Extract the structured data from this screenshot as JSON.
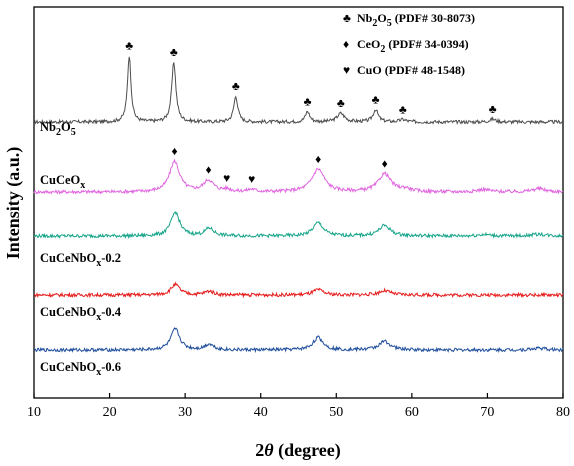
{
  "chart_data": {
    "type": "line",
    "xlabel_prefix": "2",
    "xlabel_theta": "θ",
    "xlabel_suffix": " (degree)",
    "ylabel": "Intensity (a.u.)",
    "xlim": [
      10,
      80
    ],
    "x_ticks": [
      10,
      20,
      30,
      40,
      50,
      60,
      70,
      80
    ],
    "y_ticks_shown": false,
    "legend_placement": "top-right",
    "legend": [
      {
        "symbol": "♣",
        "phase_main": "Nb",
        "sub1": "2",
        "mid": "O",
        "sub2": "5",
        "pdf": " (PDF# 30-8073)"
      },
      {
        "symbol": "♦",
        "phase_main": "CeO",
        "sub1": "2",
        "mid": "",
        "sub2": "",
        "pdf": " (PDF# 34-0394)"
      },
      {
        "symbol": "♥",
        "phase_main": "CuO",
        "sub1": "",
        "mid": "",
        "sub2": "",
        "pdf": " (PDF# 48-1548)"
      }
    ],
    "series": [
      {
        "name_main": "Nb",
        "name_sub1": "2",
        "name_mid": "O",
        "name_sub2": "5",
        "name_tail": "",
        "color": "#4d4d4d",
        "baseline": 1.0,
        "peaks": [
          {
            "pos": 22.6,
            "height": 7.0,
            "width": 0.28
          },
          {
            "pos": 28.5,
            "height": 6.3,
            "width": 0.33
          },
          {
            "pos": 36.7,
            "height": 2.7,
            "width": 0.33
          },
          {
            "pos": 46.2,
            "height": 1.1,
            "width": 0.35
          },
          {
            "pos": 50.6,
            "height": 0.9,
            "width": 0.6
          },
          {
            "pos": 55.2,
            "height": 1.3,
            "width": 0.4
          },
          {
            "pos": 58.8,
            "height": 0.25,
            "width": 0.5
          },
          {
            "pos": 70.7,
            "height": 0.3,
            "width": 0.5
          }
        ],
        "markers": [
          {
            "pos": 22.6,
            "symbol": "♣"
          },
          {
            "pos": 28.5,
            "symbol": "♣"
          },
          {
            "pos": 36.7,
            "symbol": "♣"
          },
          {
            "pos": 46.2,
            "symbol": "♣"
          },
          {
            "pos": 50.6,
            "symbol": "♣"
          },
          {
            "pos": 55.2,
            "symbol": "♣"
          },
          {
            "pos": 58.8,
            "symbol": "♣"
          },
          {
            "pos": 70.7,
            "symbol": "♣"
          }
        ]
      },
      {
        "name_main": "CuCeO",
        "name_sub1": "x",
        "name_mid": "",
        "name_sub2": "",
        "name_tail": "",
        "color": "#e066e0",
        "baseline": 1.0,
        "peaks": [
          {
            "pos": 28.6,
            "height": 3.2,
            "width": 0.8
          },
          {
            "pos": 33.1,
            "height": 1.2,
            "width": 0.8
          },
          {
            "pos": 35.5,
            "height": 0.25,
            "width": 0.6
          },
          {
            "pos": 38.8,
            "height": 0.25,
            "width": 0.6
          },
          {
            "pos": 47.6,
            "height": 2.4,
            "width": 1.0
          },
          {
            "pos": 56.4,
            "height": 1.9,
            "width": 1.0
          },
          {
            "pos": 59.2,
            "height": 0.3,
            "width": 0.8
          },
          {
            "pos": 69.5,
            "height": 0.25,
            "width": 1.0
          },
          {
            "pos": 76.8,
            "height": 0.35,
            "width": 1.0
          }
        ],
        "markers": [
          {
            "pos": 28.6,
            "symbol": "♦"
          },
          {
            "pos": 33.1,
            "symbol": "♦"
          },
          {
            "pos": 35.5,
            "symbol": "♥"
          },
          {
            "pos": 38.8,
            "symbol": "♥"
          },
          {
            "pos": 47.6,
            "symbol": "♦"
          },
          {
            "pos": 56.4,
            "symbol": "♦"
          }
        ]
      },
      {
        "name_main": "CuCeNbO",
        "name_sub1": "x",
        "name_mid": "",
        "name_sub2": "",
        "name_tail": "-0.2",
        "color": "#17a589",
        "baseline": 1.0,
        "peaks": [
          {
            "pos": 28.7,
            "height": 2.5,
            "width": 0.7
          },
          {
            "pos": 33.2,
            "height": 0.8,
            "width": 0.7
          },
          {
            "pos": 47.6,
            "height": 1.4,
            "width": 0.8
          },
          {
            "pos": 56.4,
            "height": 1.1,
            "width": 0.9
          },
          {
            "pos": 69.5,
            "height": 0.15,
            "width": 1.0
          },
          {
            "pos": 76.8,
            "height": 0.2,
            "width": 1.0
          }
        ],
        "markers": []
      },
      {
        "name_main": "CuCeNbO",
        "name_sub1": "x",
        "name_mid": "",
        "name_sub2": "",
        "name_tail": "-0.4",
        "color": "#e61c1c",
        "baseline": 1.0,
        "peaks": [
          {
            "pos": 28.7,
            "height": 1.1,
            "width": 0.7
          },
          {
            "pos": 33.2,
            "height": 0.4,
            "width": 0.7
          },
          {
            "pos": 47.6,
            "height": 0.55,
            "width": 0.8
          },
          {
            "pos": 56.4,
            "height": 0.45,
            "width": 0.9
          }
        ],
        "markers": []
      },
      {
        "name_main": "CuCeNbO",
        "name_sub1": "x",
        "name_mid": "",
        "name_sub2": "",
        "name_tail": "-0.6",
        "color": "#1f4e9c",
        "baseline": 1.0,
        "peaks": [
          {
            "pos": 28.7,
            "height": 2.2,
            "width": 0.7
          },
          {
            "pos": 33.2,
            "height": 0.6,
            "width": 0.7
          },
          {
            "pos": 47.6,
            "height": 1.3,
            "width": 0.8
          },
          {
            "pos": 56.4,
            "height": 0.9,
            "width": 0.9
          },
          {
            "pos": 76.8,
            "height": 0.2,
            "width": 1.0
          }
        ],
        "markers": []
      }
    ]
  }
}
